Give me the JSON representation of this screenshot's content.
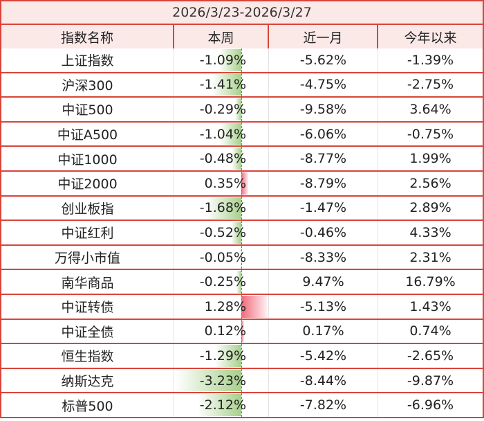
{
  "title": "2026/3/23-2026/3/27",
  "columns": [
    "指数名称",
    "本周",
    "近一月",
    "今年以来"
  ],
  "colors": {
    "border": "#d9443a",
    "header_bg": "#fbe9e8",
    "bar_negative": "#a7d08c",
    "bar_positive": "#f06a7a"
  },
  "rows": [
    {
      "name": "上证指数",
      "week": "-1.09%",
      "month": "-5.62%",
      "ytd": "-1.39%",
      "week_value": -1.09
    },
    {
      "name": "沪深300",
      "week": "-1.41%",
      "month": "-4.75%",
      "ytd": "-2.75%",
      "week_value": -1.41
    },
    {
      "name": "中证500",
      "week": "-0.29%",
      "month": "-9.58%",
      "ytd": "3.64%",
      "week_value": -0.29
    },
    {
      "name": "中证A500",
      "week": "-1.04%",
      "month": "-6.06%",
      "ytd": "-0.75%",
      "week_value": -1.04
    },
    {
      "name": "中证1000",
      "week": "-0.48%",
      "month": "-8.77%",
      "ytd": "1.99%",
      "week_value": -0.48
    },
    {
      "name": "中证2000",
      "week": "0.35%",
      "month": "-8.79%",
      "ytd": "2.56%",
      "week_value": 0.35
    },
    {
      "name": "创业板指",
      "week": "-1.68%",
      "month": "-1.47%",
      "ytd": "2.89%",
      "week_value": -1.68
    },
    {
      "name": "中证红利",
      "week": "-0.52%",
      "month": "-0.46%",
      "ytd": "4.33%",
      "week_value": -0.52
    },
    {
      "name": "万得小市值",
      "week": "-0.05%",
      "month": "-8.33%",
      "ytd": "2.31%",
      "week_value": -0.05
    },
    {
      "name": "南华商品",
      "week": "-0.25%",
      "month": "9.47%",
      "ytd": "16.79%",
      "week_value": -0.25
    },
    {
      "name": "中证转债",
      "week": "1.28%",
      "month": "-5.13%",
      "ytd": "1.43%",
      "week_value": 1.28
    },
    {
      "name": "中证全债",
      "week": "0.12%",
      "month": "0.17%",
      "ytd": "0.74%",
      "week_value": 0.12
    },
    {
      "name": "恒生指数",
      "week": "-1.29%",
      "month": "-5.42%",
      "ytd": "-2.65%",
      "week_value": -1.29
    },
    {
      "name": "纳斯达克",
      "week": "-3.23%",
      "month": "-8.44%",
      "ytd": "-9.87%",
      "week_value": -3.23
    },
    {
      "name": "标普500",
      "week": "-2.12%",
      "month": "-7.82%",
      "ytd": "-6.96%",
      "week_value": -2.12
    }
  ]
}
